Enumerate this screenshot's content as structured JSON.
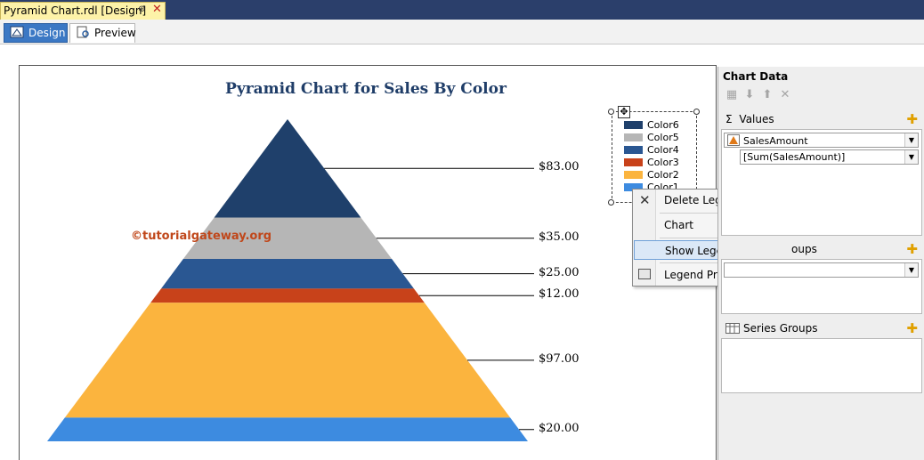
{
  "doc_tab": {
    "title": "Pyramid Chart.rdl [Design]",
    "pin_glyph": "⊕",
    "close_glyph": "✕"
  },
  "view_tabs": {
    "design": "Design",
    "preview": "Preview"
  },
  "chart": {
    "watermark": "©tutorialgateway.org"
  },
  "chart_data": {
    "type": "pyramid",
    "title": "Pyramid Chart for Sales By Color",
    "segments_top_to_bottom": [
      {
        "category": "Color 6",
        "value": 83,
        "label": "$83.00",
        "color": "#1f406b"
      },
      {
        "category": "Color 5",
        "value": 35,
        "label": "$35.00",
        "color": "#b6b6b6"
      },
      {
        "category": "Color 4",
        "value": 25,
        "label": "$25.00",
        "color": "#2a5792"
      },
      {
        "category": "Color 3",
        "value": 12,
        "label": "$12.00",
        "color": "#c8421a"
      },
      {
        "category": "Color 2",
        "value": 97,
        "label": "$97.00",
        "color": "#fbb43e"
      },
      {
        "category": "Color 1",
        "value": 20,
        "label": "$20.00",
        "color": "#3d8be0"
      }
    ],
    "legend": [
      "Color 6",
      "Color 5",
      "Color 4",
      "Color 3",
      "Color 2",
      "Color 1"
    ],
    "legend_placement": "top-right"
  },
  "context_menu": {
    "delete_legend": "Delete Legend",
    "chart": "Chart",
    "show_legend_title": "Show Legend Title",
    "legend_properties": "Legend Properties..."
  },
  "panel": {
    "title": "Chart Data",
    "values_label": "Values",
    "values_symbol": "Σ",
    "value_field": "SalesAmount",
    "value_expression": "[Sum(SalesAmount)]",
    "category_groups_label": "oups",
    "series_groups_label": "Series Groups"
  }
}
